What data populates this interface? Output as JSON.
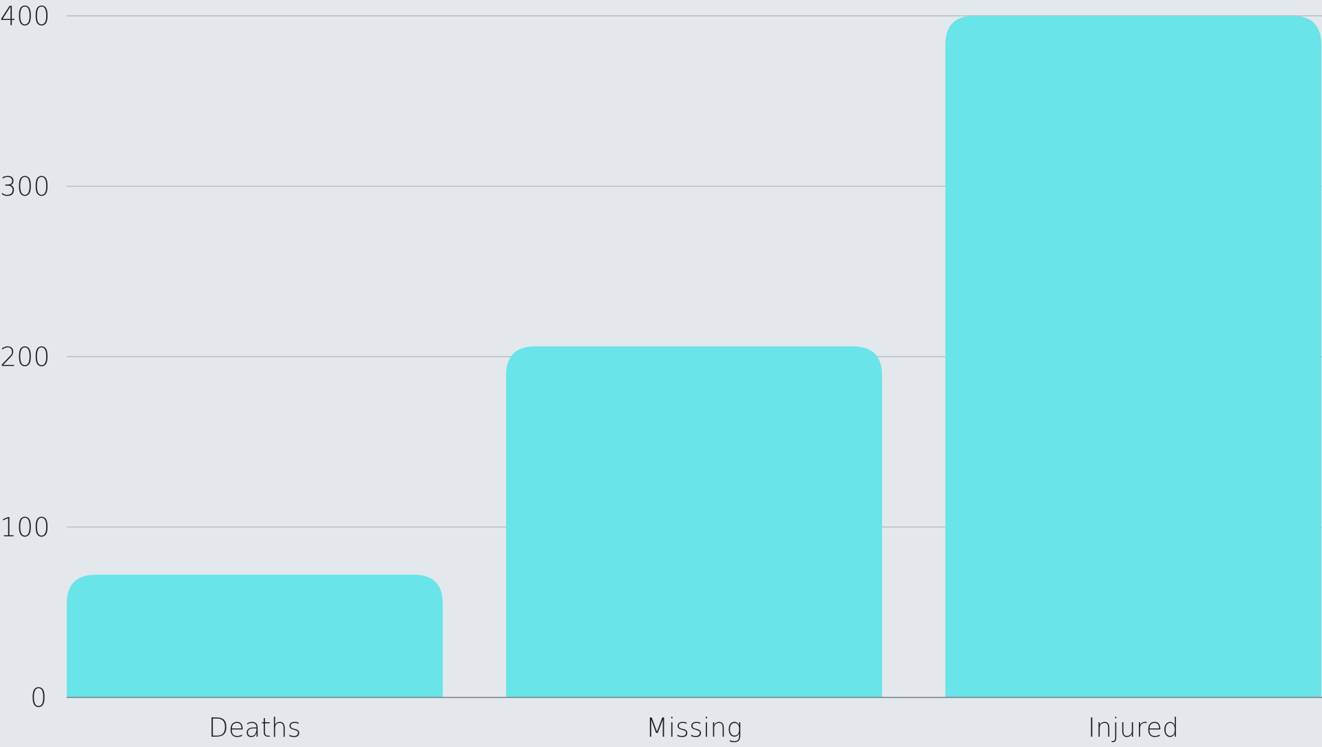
{
  "chart_data": {
    "type": "bar",
    "title": "",
    "xlabel": "",
    "ylabel": "",
    "categories": [
      "Deaths",
      "Missing",
      "Injured"
    ],
    "values": [
      72,
      206,
      400
    ],
    "ylim": [
      0,
      400
    ],
    "yticks": [
      0,
      100,
      200,
      300,
      400
    ],
    "grid": true,
    "colors": {
      "bar": "#69e4e8",
      "background": "#e2e8ec",
      "grid": "#b9bec2",
      "axis": "#7b8084",
      "text": "#1f1f1f"
    }
  }
}
